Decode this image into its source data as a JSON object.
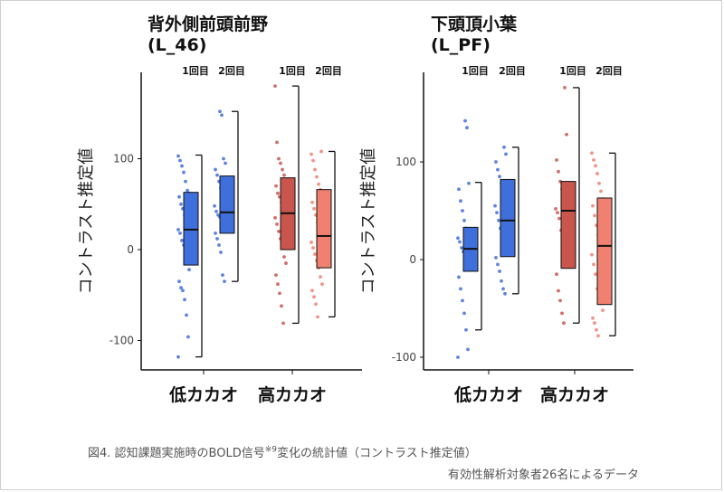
{
  "chart_data": [
    {
      "type": "box",
      "title_line1": "背外側前頭前野",
      "title_line2": "(L_46)",
      "ylabel": "コントラスト推定値",
      "ylim": [
        -135,
        200
      ],
      "yticks": [
        100,
        0,
        -100
      ],
      "ytick_labels": [
        "100",
        "0",
        "-100"
      ],
      "groups": [
        "低カカオ",
        "高カカオ"
      ],
      "session_labels": [
        "1回目",
        "2回目",
        "1回目",
        "2回目"
      ],
      "boxes": [
        {
          "group": "低カカオ",
          "session": "1回目",
          "color": "#3f6fdb",
          "min": -118,
          "q1": -17,
          "median": 22,
          "q3": 63,
          "max": 104,
          "points": [
            -118,
            -96,
            -72,
            -55,
            -45,
            -42,
            -35,
            -22,
            -10,
            -2,
            5,
            10,
            18,
            22,
            28,
            30,
            38,
            45,
            50,
            58,
            62,
            65,
            75,
            85,
            92,
            98,
            103
          ]
        },
        {
          "group": "低カカオ",
          "session": "2回目",
          "color": "#3f6fdb",
          "min": -35,
          "q1": 18,
          "median": 41,
          "q3": 81,
          "max": 152,
          "points": [
            -35,
            -28,
            -3,
            5,
            12,
            18,
            22,
            28,
            32,
            36,
            38,
            42,
            48,
            55,
            60,
            68,
            75,
            82,
            88,
            95,
            100,
            148,
            152
          ]
        },
        {
          "group": "高カカオ",
          "session": "1回目",
          "color": "#c9554c",
          "min": -81,
          "q1": 0,
          "median": 40,
          "q3": 79,
          "max": 180,
          "points": [
            -81,
            -62,
            -48,
            -38,
            -28,
            -15,
            -8,
            5,
            12,
            20,
            28,
            35,
            40,
            45,
            52,
            58,
            62,
            70,
            75,
            82,
            88,
            95,
            100,
            118,
            180
          ]
        },
        {
          "group": "高カカオ",
          "session": "2回目",
          "color": "#f08070",
          "min": -74,
          "q1": -20,
          "median": 15,
          "q3": 66,
          "max": 108,
          "points": [
            -74,
            -60,
            -52,
            -45,
            -38,
            -30,
            -20,
            -12,
            -5,
            2,
            8,
            15,
            22,
            30,
            38,
            45,
            52,
            60,
            66,
            72,
            80,
            88,
            98,
            105,
            108
          ]
        }
      ]
    },
    {
      "type": "box",
      "title_line1": "下頭頂小葉",
      "title_line2": "(L_PF)",
      "ylabel": "コントラスト推定値",
      "ylim": [
        -115,
        175
      ],
      "yticks": [
        100,
        0,
        -100
      ],
      "ytick_labels": [
        "100",
        "0",
        "-100"
      ],
      "groups": [
        "低カカオ",
        "高カカオ"
      ],
      "session_labels": [
        "1回目",
        "2回目",
        "1回目",
        "2回目"
      ],
      "boxes": [
        {
          "group": "低カカオ",
          "session": "1回目",
          "color": "#3f6fdb",
          "min": -72,
          "q1": -12,
          "median": 11,
          "q3": 33,
          "max": 79,
          "points": [
            -100,
            -92,
            -72,
            -55,
            -42,
            -30,
            -18,
            -8,
            -2,
            2,
            8,
            12,
            18,
            22,
            28,
            32,
            40,
            50,
            60,
            72,
            78,
            135,
            142
          ]
        },
        {
          "group": "低カカオ",
          "session": "2回目",
          "color": "#3f6fdb",
          "min": -35,
          "q1": 3,
          "median": 40,
          "q3": 82,
          "max": 115,
          "points": [
            -35,
            -30,
            -22,
            -12,
            -5,
            2,
            10,
            18,
            25,
            32,
            40,
            48,
            55,
            62,
            70,
            78,
            85,
            92,
            100,
            108,
            115
          ]
        },
        {
          "group": "高カカオ",
          "session": "1回目",
          "color": "#c9554c",
          "min": -65,
          "q1": -9,
          "median": 50,
          "q3": 80,
          "max": 176,
          "points": [
            -65,
            -55,
            -42,
            -32,
            -15,
            -5,
            8,
            20,
            30,
            42,
            48,
            52,
            58,
            65,
            72,
            80,
            90,
            102,
            128,
            176
          ]
        },
        {
          "group": "高カカオ",
          "session": "2回目",
          "color": "#f08070",
          "min": -78,
          "q1": -46,
          "median": 14,
          "q3": 63,
          "max": 109,
          "points": [
            -78,
            -72,
            -65,
            -60,
            -52,
            -45,
            -38,
            -30,
            -15,
            -5,
            5,
            12,
            18,
            25,
            35,
            45,
            55,
            62,
            70,
            78,
            88,
            96,
            102,
            109
          ]
        }
      ]
    }
  ],
  "caption": {
    "line1_main": "図4. 認知課題実施時のBOLD信号",
    "line1_sup": "※9",
    "line1_rest": "変化の統計値（コントラスト推定値）",
    "line2": "有効性解析対象者26名によるデータ"
  }
}
